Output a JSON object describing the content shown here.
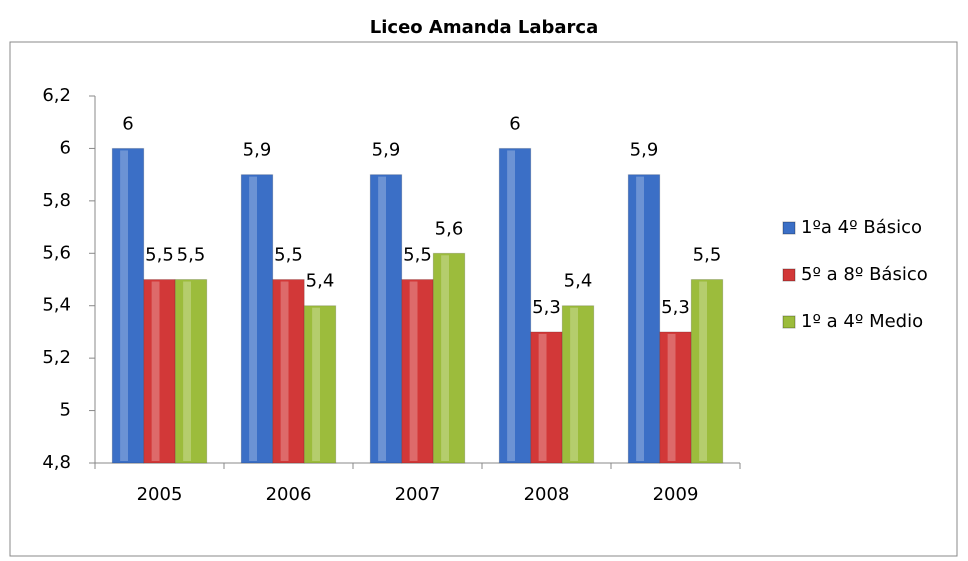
{
  "chart_data": {
    "type": "bar",
    "title": "Liceo Amanda Labarca",
    "categories": [
      "2005",
      "2006",
      "2007",
      "2008",
      "2009"
    ],
    "series": [
      {
        "name": "1ºa 4º Básico",
        "color": "#3b6fc6",
        "values": [
          6,
          5.9,
          5.9,
          6,
          5.9
        ],
        "value_labels": [
          "6",
          "5,9",
          "5,9",
          "6",
          "5,9"
        ]
      },
      {
        "name": "5º a 8º Básico",
        "color": "#d23838",
        "values": [
          5.5,
          5.5,
          5.5,
          5.3,
          5.3
        ],
        "value_labels": [
          "5,5",
          "5,5",
          "5,5",
          "5,3",
          "5,3"
        ]
      },
      {
        "name": "1º a 4º Medio",
        "color": "#9cbc3c",
        "values": [
          5.5,
          5.4,
          5.6,
          5.4,
          5.5
        ],
        "value_labels": [
          "5,5",
          "5,4",
          "5,6",
          "5,4",
          "5,5"
        ]
      }
    ],
    "ylim": [
      4.8,
      6.2
    ],
    "yticks": [
      {
        "value": 4.8,
        "label": "4,8"
      },
      5,
      {
        "value": 5.2,
        "label": "5,2"
      },
      {
        "value": 5.4,
        "label": "5,4"
      },
      {
        "value": 5.6,
        "label": "5,6"
      },
      {
        "value": 5.8,
        "label": "5,8"
      },
      6,
      {
        "value": 6.2,
        "label": "6,2"
      }
    ],
    "legend": "right"
  }
}
